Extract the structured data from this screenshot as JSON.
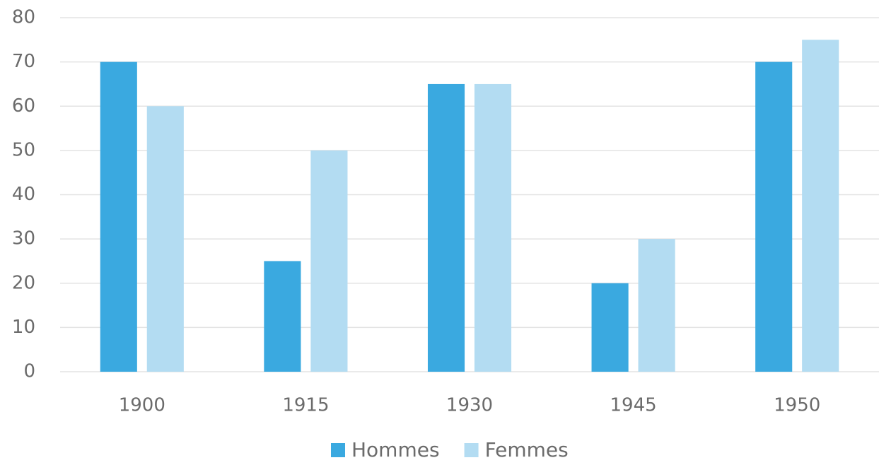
{
  "chart_data": {
    "type": "bar",
    "categories": [
      "1900",
      "1915",
      "1930",
      "1945",
      "1950"
    ],
    "series": [
      {
        "name": "Hommes",
        "color": "#3aa9e0",
        "values": [
          70,
          25,
          65,
          20,
          70
        ]
      },
      {
        "name": "Femmes",
        "color": "#b3dcf2",
        "values": [
          60,
          50,
          65,
          30,
          75
        ]
      }
    ],
    "ylim": [
      0,
      80
    ],
    "yticks": [
      0,
      10,
      20,
      30,
      40,
      50,
      60,
      70,
      80
    ],
    "grid": true,
    "legend": "bottom"
  }
}
